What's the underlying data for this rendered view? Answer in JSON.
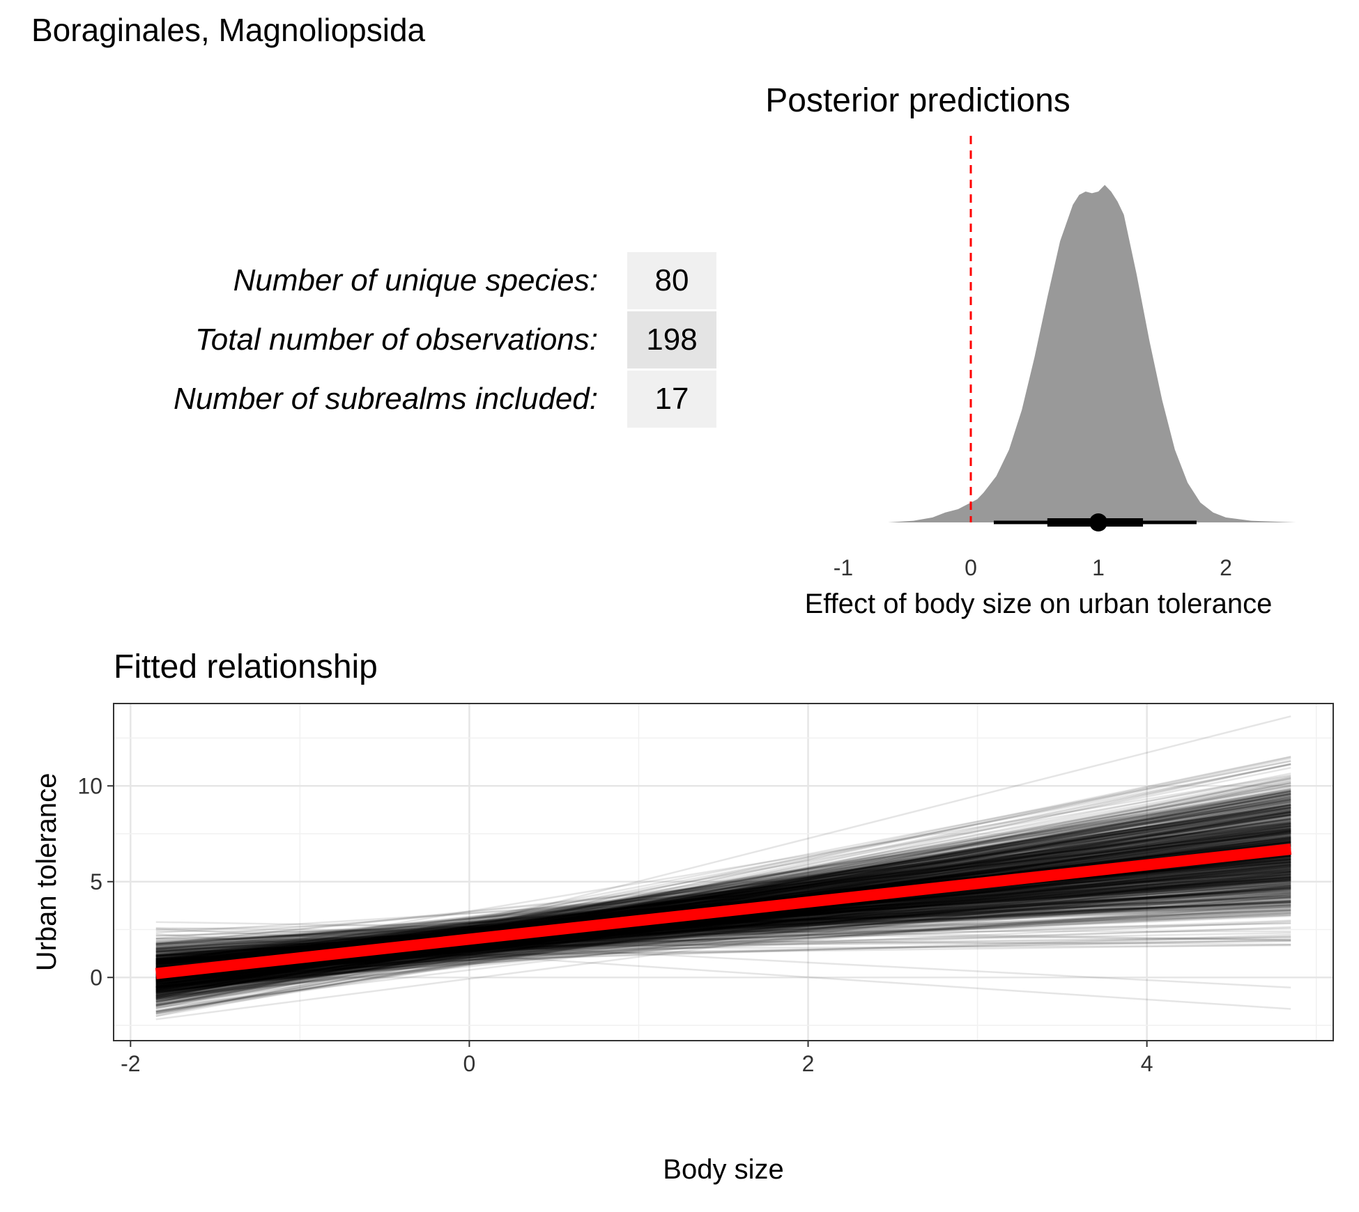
{
  "title": "Boraginales, Magnoliopsida",
  "stats": [
    {
      "label": "Number of unique species:",
      "value": "80",
      "shade": "#f0f0f0"
    },
    {
      "label": "Total number of observations:",
      "value": "198",
      "shade": "#e4e4e4"
    },
    {
      "label": "Number of subrealms included:",
      "value": "17",
      "shade": "#f0f0f0"
    }
  ],
  "chart_data": [
    {
      "type": "area",
      "title": "Posterior predictions",
      "xlabel": "Effect of body size on urban tolerance",
      "ylabel": "",
      "xlim": [
        -1.55,
        2.55
      ],
      "xticks": [
        "-1",
        "0",
        "1",
        "2"
      ],
      "xtick_values": [
        -1,
        0,
        1,
        2
      ],
      "density": {
        "x": [
          -0.65,
          -0.45,
          -0.3,
          -0.2,
          -0.1,
          -0.05,
          0.0,
          0.05,
          0.1,
          0.2,
          0.3,
          0.4,
          0.5,
          0.6,
          0.7,
          0.8,
          0.85,
          0.9,
          0.95,
          1.0,
          1.05,
          1.1,
          1.15,
          1.2,
          1.3,
          1.4,
          1.5,
          1.6,
          1.7,
          1.8,
          1.9,
          2.0,
          2.2,
          2.4,
          2.55
        ],
        "y": [
          0.0,
          0.005,
          0.015,
          0.03,
          0.04,
          0.05,
          0.06,
          0.07,
          0.09,
          0.14,
          0.22,
          0.34,
          0.5,
          0.68,
          0.85,
          0.96,
          0.99,
          1.0,
          0.995,
          1.0,
          1.02,
          1.0,
          0.97,
          0.93,
          0.75,
          0.55,
          0.37,
          0.22,
          0.12,
          0.06,
          0.03,
          0.015,
          0.005,
          0.002,
          0.0
        ]
      },
      "fill_color": "#999999",
      "point_estimate": 1.0,
      "interval_66": [
        0.6,
        1.35
      ],
      "interval_95": [
        0.18,
        1.77
      ],
      "reference_line": {
        "x": 0,
        "color": "#ff0000",
        "style": "dashed"
      }
    },
    {
      "type": "line",
      "title": "Fitted relationship",
      "xlabel": "Body size",
      "ylabel": "Urban tolerance",
      "xlim": [
        -2.1,
        5.1
      ],
      "ylim": [
        -3.3,
        14.3
      ],
      "xticks": [
        "-2",
        "0",
        "2",
        "4"
      ],
      "xtick_values": [
        -2,
        0,
        2,
        4
      ],
      "yticks": [
        "0",
        "5",
        "10"
      ],
      "ytick_values": [
        0,
        5,
        10
      ],
      "x_range": [
        -1.85,
        4.85
      ],
      "mean_line": {
        "x": [
          -1.85,
          4.85
        ],
        "y": [
          0.2,
          6.7
        ],
        "color": "#ff0000"
      },
      "posterior_draws": {
        "count": 1000,
        "center_x": 0.0,
        "intercept_mean": 1.95,
        "intercept_sd": 0.5,
        "slope_mean": 0.97,
        "slope_sd": 0.37,
        "color": "#000000",
        "opacity": 0.1
      },
      "grid": true
    }
  ]
}
